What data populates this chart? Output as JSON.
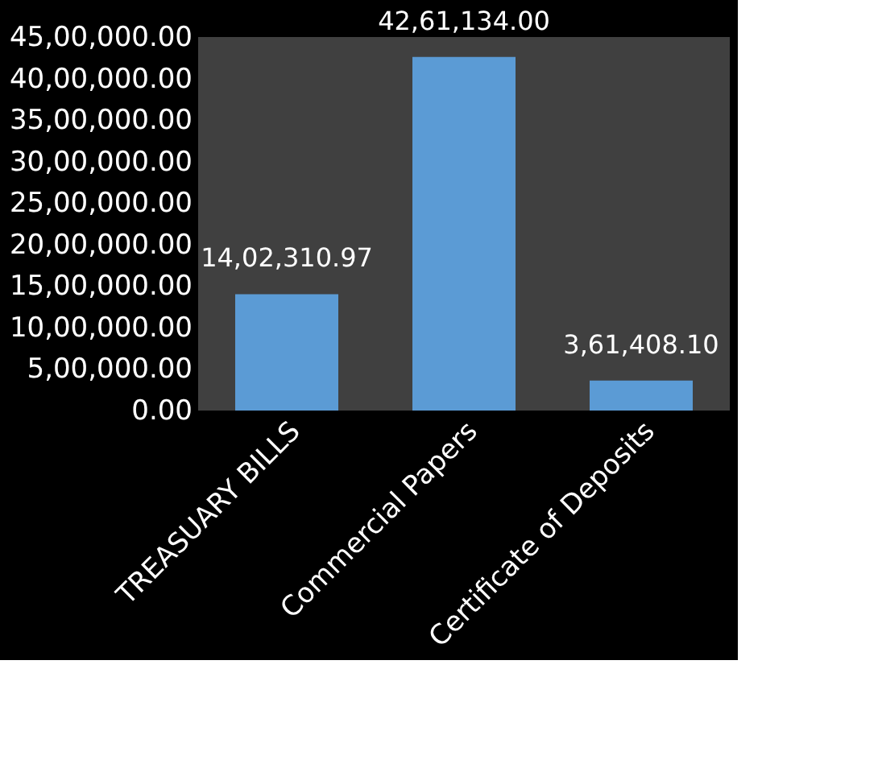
{
  "chart_data": {
    "type": "bar",
    "categories": [
      "TREASUARY BILLS",
      "Commercial Papers",
      "Certificate of Deposits"
    ],
    "values": [
      1402310.97,
      4261134.0,
      361408.1
    ],
    "color": "#5b9bd5",
    "value_labels": [
      "14,02,310.97",
      "42,61,134.00",
      "3,61,408.10"
    ],
    "ylim": [
      0,
      4500000
    ],
    "yticks": [
      {
        "value": 0,
        "label": "0.00"
      },
      {
        "value": 500000,
        "label": "5,00,000.00"
      },
      {
        "value": 1000000,
        "label": "10,00,000.00"
      },
      {
        "value": 1500000,
        "label": "15,00,000.00"
      },
      {
        "value": 2000000,
        "label": "20,00,000.00"
      },
      {
        "value": 2500000,
        "label": "25,00,000.00"
      },
      {
        "value": 3000000,
        "label": "30,00,000.00"
      },
      {
        "value": 3500000,
        "label": "35,00,000.00"
      },
      {
        "value": 4000000,
        "label": "40,00,000.00"
      },
      {
        "value": 4500000,
        "label": "45,00,000.00"
      }
    ],
    "grid": false
  }
}
